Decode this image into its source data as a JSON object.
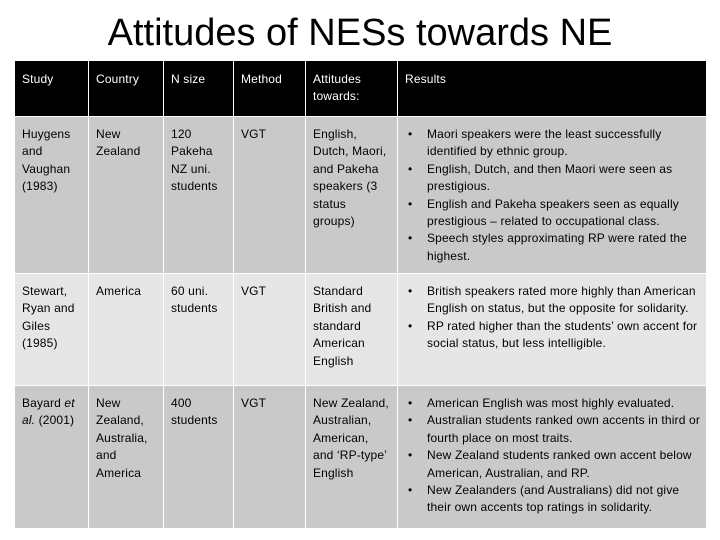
{
  "slide": {
    "title": "Attitudes of NESs towards NE"
  },
  "table": {
    "headers": [
      "Study",
      "Country",
      "N size",
      "Method",
      "Attitudes towards:",
      "Results"
    ],
    "rows": [
      {
        "study": "Huygens and Vaughan (1983)",
        "country": "New Zealand",
        "n_size": "120 Pakeha NZ uni. students",
        "method": "VGT",
        "attitudes": "English, Dutch, Maori, and Pakeha speakers (3 status groups)",
        "results": [
          "Maori speakers were the least successfully identified by ethnic group.",
          "English, Dutch, and then Maori were seen as prestigious.",
          "English and Pakeha speakers seen as equally prestigious – related to occupational class.",
          "Speech styles approximating RP were rated the highest."
        ]
      },
      {
        "study": "Stewart, Ryan and Giles (1985)",
        "country": "America",
        "n_size": "60 uni. students",
        "method": "VGT",
        "attitudes": "Standard British and standard American English",
        "results": [
          "British speakers rated more highly than American English on status, but the opposite for solidarity.",
          "RP rated higher than the students’ own accent for social status, but less intelligible."
        ]
      },
      {
        "study_author": "Bayard",
        "study_etal": "et al.",
        "study_year": "(2001)",
        "country": "New Zealand, Australia, and America",
        "n_size": "400 students",
        "method": "VGT",
        "attitudes": "New Zealand, Australian, American, and ‘RP-type’ English",
        "results": [
          "American English was most highly evaluated.",
          "Australian students ranked own accents in third or fourth place on most traits.",
          "New Zealand students ranked own accent below American, Australian, and RP.",
          "New Zealanders (and Australians) did not give their own accents top ratings in solidarity."
        ]
      }
    ]
  }
}
